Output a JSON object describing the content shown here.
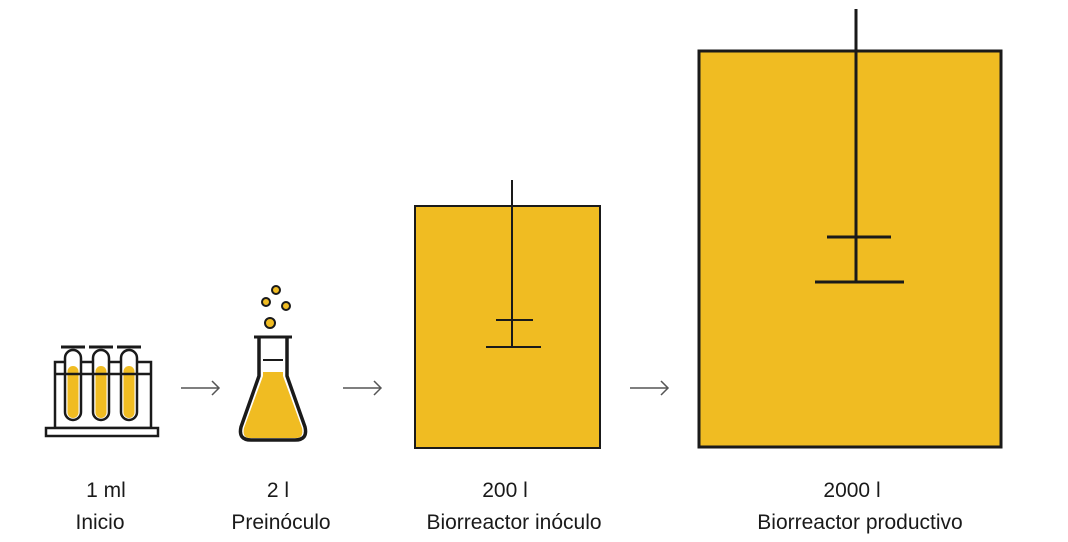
{
  "colors": {
    "culture": "#F0BC22",
    "outline": "#1a1a1a",
    "background": "#ffffff"
  },
  "stages": [
    {
      "volume": "1 ml",
      "name": "Inicio",
      "icon": "test-tube-rack-icon"
    },
    {
      "volume": "2 l",
      "name": "Preinóculo",
      "icon": "erlenmeyer-flask-icon"
    },
    {
      "volume": "200 l",
      "name": "Biorreactor inóculo",
      "icon": "inoculum-bioreactor-icon"
    },
    {
      "volume": "2000 l",
      "name": "Biorreactor productivo",
      "icon": "production-bioreactor-icon"
    }
  ],
  "connectors": [
    "arrow-icon",
    "arrow-icon",
    "arrow-icon"
  ]
}
